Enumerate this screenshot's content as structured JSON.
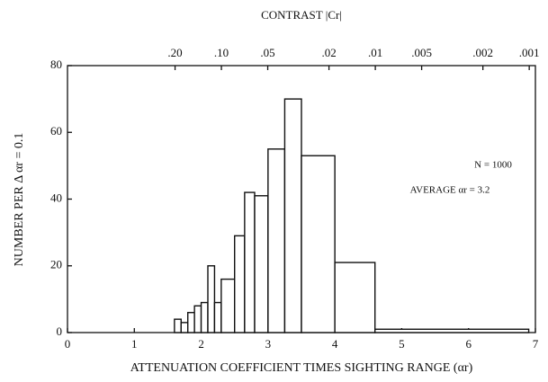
{
  "chart_data": {
    "type": "histogram",
    "title": "CONTRAST |Cr|",
    "xlabel": "ATTENUATION COEFFICIENT TIMES SIGHTING RANGE  (αr)",
    "ylabel": "NUMBER  PER  Δ  αr = 0.1",
    "annotations": [
      "N = 1000",
      "AVERAGE  αr = 3.2"
    ],
    "bins": [
      1.6,
      1.7,
      1.8,
      1.9,
      2.0,
      2.1,
      2.2,
      2.3,
      2.5,
      2.65,
      2.8,
      3.0,
      3.25,
      3.5,
      4.0,
      4.6,
      6.9
    ],
    "values": [
      4,
      3,
      6,
      8,
      9,
      20,
      9,
      16,
      29,
      42,
      41,
      55,
      70,
      53,
      21,
      1
    ],
    "color": "#ffffff",
    "xlim": [
      0,
      7
    ],
    "xticks": [
      0,
      1,
      2,
      3,
      4,
      5,
      6,
      7
    ],
    "ylim": [
      0,
      80
    ],
    "yticks": [
      0,
      20,
      40,
      60,
      80
    ],
    "x2_transform": "-ln",
    "x2ticks": [
      {
        "value": 0.2,
        "label": ".20"
      },
      {
        "value": 0.1,
        "label": ".10"
      },
      {
        "value": 0.05,
        "label": ".05"
      },
      {
        "value": 0.02,
        "label": ".02"
      },
      {
        "value": 0.01,
        "label": ".01"
      },
      {
        "value": 0.005,
        "label": ".005"
      },
      {
        "value": 0.002,
        "label": ".002"
      },
      {
        "value": 0.001,
        "label": ".001"
      }
    ]
  }
}
